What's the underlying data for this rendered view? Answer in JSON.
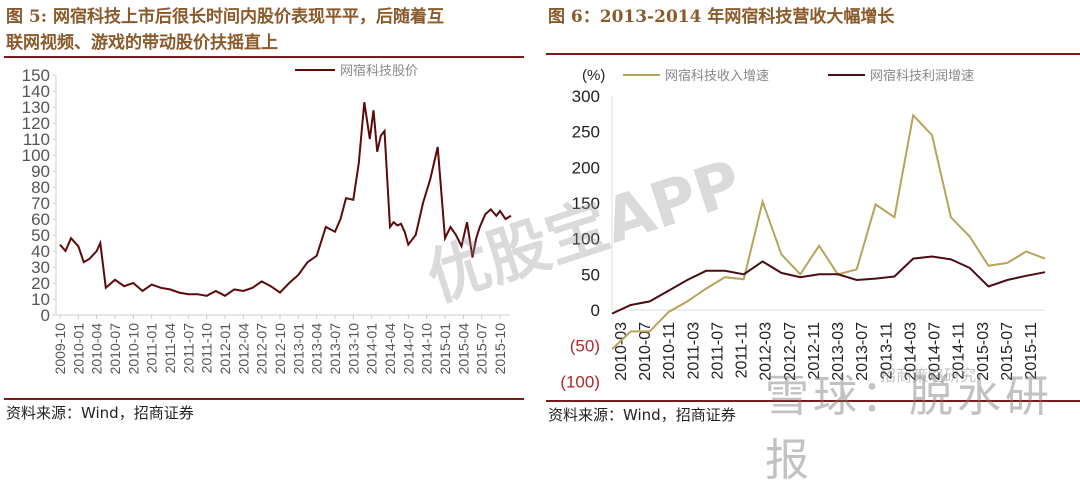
{
  "left_panel": {
    "title_line1": "图 5: 网宿科技上市后很长时间内股价表现平平，后随着互",
    "title_line2": "联网视频、游戏的带动股价扶摇直上",
    "legend": "网宿科技股价",
    "source": "资料来源：Wind，招商证券"
  },
  "right_panel": {
    "title": "图 6：2013-2014 年网宿科技营收大幅增长",
    "unit": "(%)",
    "legend_revenue": "网宿科技收入增速",
    "legend_profit": "网宿科技利润增速",
    "source": "资料来源：Wind，招商证券"
  },
  "watermarks": {
    "center": "优股宝APP",
    "bottom": "雪球：脱水研报",
    "bottom_small": "招商策略研究"
  },
  "colors": {
    "title": "#8a5a2b",
    "rule": "#7a1c1c",
    "stock_line": "#5c0a0a",
    "revenue_line": "#b5a45a",
    "profit_line": "#4a0d14",
    "negative_tick": "#b0282a"
  },
  "chart_data": [
    {
      "type": "line",
      "title": "网宿科技股价",
      "xlabel": "",
      "ylabel": "",
      "ylim": [
        0,
        150
      ],
      "yticks": [
        0,
        10,
        20,
        30,
        40,
        50,
        60,
        70,
        80,
        90,
        100,
        110,
        120,
        130,
        140,
        150
      ],
      "grid": false,
      "legend_position": "top-right",
      "categories": [
        "2009-10",
        "2010-01",
        "2010-04",
        "2010-07",
        "2010-10",
        "2011-01",
        "2011-04",
        "2011-07",
        "2011-10",
        "2012-01",
        "2012-04",
        "2012-07",
        "2012-10",
        "2013-01",
        "2013-04",
        "2013-07",
        "2013-10",
        "2014-01",
        "2014-04",
        "2014-07",
        "2014-10",
        "2015-01",
        "2015-04",
        "2015-07",
        "2015-10"
      ],
      "series": [
        {
          "name": "网宿科技股价",
          "x": [
            0,
            0.3,
            0.6,
            1.0,
            1.3,
            1.6,
            2.0,
            2.2,
            2.5,
            3.0,
            3.5,
            4.0,
            4.5,
            5.0,
            5.5,
            6.0,
            6.5,
            7.0,
            7.5,
            8.0,
            8.5,
            9.0,
            9.5,
            10.0,
            10.5,
            11.0,
            11.5,
            12.0,
            12.5,
            13.0,
            13.5,
            14.0,
            14.5,
            15.0,
            15.3,
            15.6,
            16.0,
            16.3,
            16.6,
            16.9,
            17.1,
            17.3,
            17.5,
            17.7,
            18.0,
            18.2,
            18.4,
            18.6,
            18.8,
            19.0,
            19.4,
            19.8,
            20.2,
            20.6,
            21.0,
            21.3,
            21.6,
            21.9,
            22.2,
            22.5,
            22.7,
            22.9,
            23.2,
            23.5,
            23.8,
            24.0,
            24.3,
            24.6
          ],
          "values": [
            44,
            40,
            48,
            43,
            33,
            35,
            40,
            45,
            17,
            22,
            18,
            20,
            15,
            19,
            17,
            16,
            14,
            13,
            13,
            12,
            15,
            12,
            16,
            15,
            17,
            21,
            18,
            14,
            20,
            25,
            33,
            37,
            55,
            52,
            60,
            73,
            72,
            95,
            133,
            110,
            128,
            102,
            112,
            115,
            55,
            58,
            56,
            57,
            52,
            44,
            50,
            70,
            85,
            105,
            48,
            55,
            50,
            43,
            58,
            36,
            48,
            55,
            63,
            66,
            62,
            65,
            60,
            62
          ]
        }
      ]
    },
    {
      "type": "line",
      "title": "2013-2014 年网宿科技营收大幅增长",
      "xlabel": "",
      "ylabel": "(%)",
      "ylim": [
        -100,
        300
      ],
      "yticks": [
        "(100)",
        "(50)",
        "0",
        "50",
        "100",
        "150",
        "200",
        "250",
        "300"
      ],
      "grid": false,
      "legend_position": "top",
      "categories": [
        "2010-03",
        "2010-07",
        "2010-11",
        "2011-03",
        "2011-07",
        "2011-11",
        "2012-03",
        "2012-07",
        "2012-11",
        "2013-03",
        "2013-07",
        "2013-11",
        "2014-03",
        "2014-07",
        "2014-11",
        "2015-03",
        "2015-07",
        "2015-11"
      ],
      "x": [
        "2010-03",
        "2010-06",
        "2010-09",
        "2010-12",
        "2011-03",
        "2011-06",
        "2011-09",
        "2011-12",
        "2012-03",
        "2012-06",
        "2012-09",
        "2012-12",
        "2013-03",
        "2013-06",
        "2013-09",
        "2013-12",
        "2014-03",
        "2014-06",
        "2014-09",
        "2014-12",
        "2015-03",
        "2015-06",
        "2015-09",
        "2015-12"
      ],
      "series": [
        {
          "name": "网宿科技收入增速",
          "values": [
            -55,
            -30,
            -30,
            -3,
            12,
            30,
            46,
            43,
            152,
            78,
            50,
            90,
            50,
            57,
            148,
            130,
            273,
            245,
            130,
            103,
            62,
            66,
            82,
            72
          ]
        },
        {
          "name": "网宿科技利润增速",
          "values": [
            -5,
            7,
            12,
            27,
            42,
            55,
            55,
            50,
            68,
            52,
            46,
            50,
            50,
            42,
            44,
            47,
            72,
            75,
            71,
            59,
            33,
            42,
            48,
            53
          ]
        }
      ]
    }
  ]
}
